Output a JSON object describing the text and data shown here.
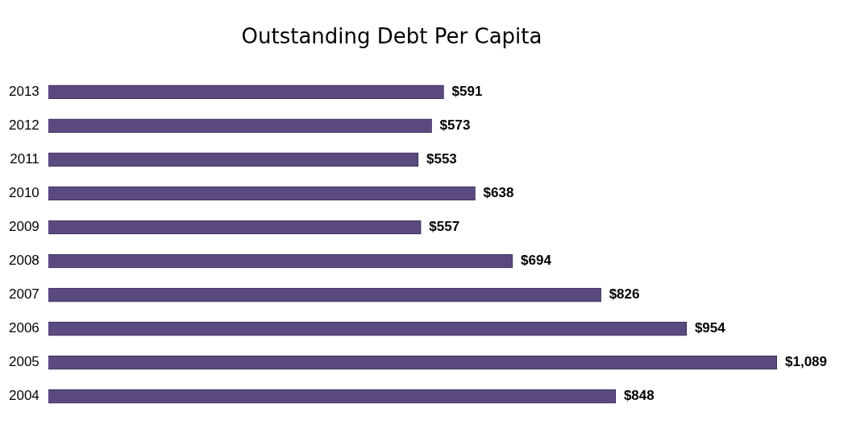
{
  "chart_data": {
    "type": "bar",
    "orientation": "horizontal",
    "title": "Outstanding Debt Per Capita",
    "categories": [
      "2013",
      "2012",
      "2011",
      "2010",
      "2009",
      "2008",
      "2007",
      "2006",
      "2005",
      "2004"
    ],
    "values": [
      591,
      573,
      553,
      638,
      557,
      694,
      826,
      954,
      1089,
      848
    ],
    "value_labels": [
      "$591",
      "$573",
      "$553",
      "$638",
      "$557",
      "$694",
      "$826",
      "$954",
      "$1,089",
      "$848"
    ],
    "color": "#5b4a80",
    "legend": false
  }
}
